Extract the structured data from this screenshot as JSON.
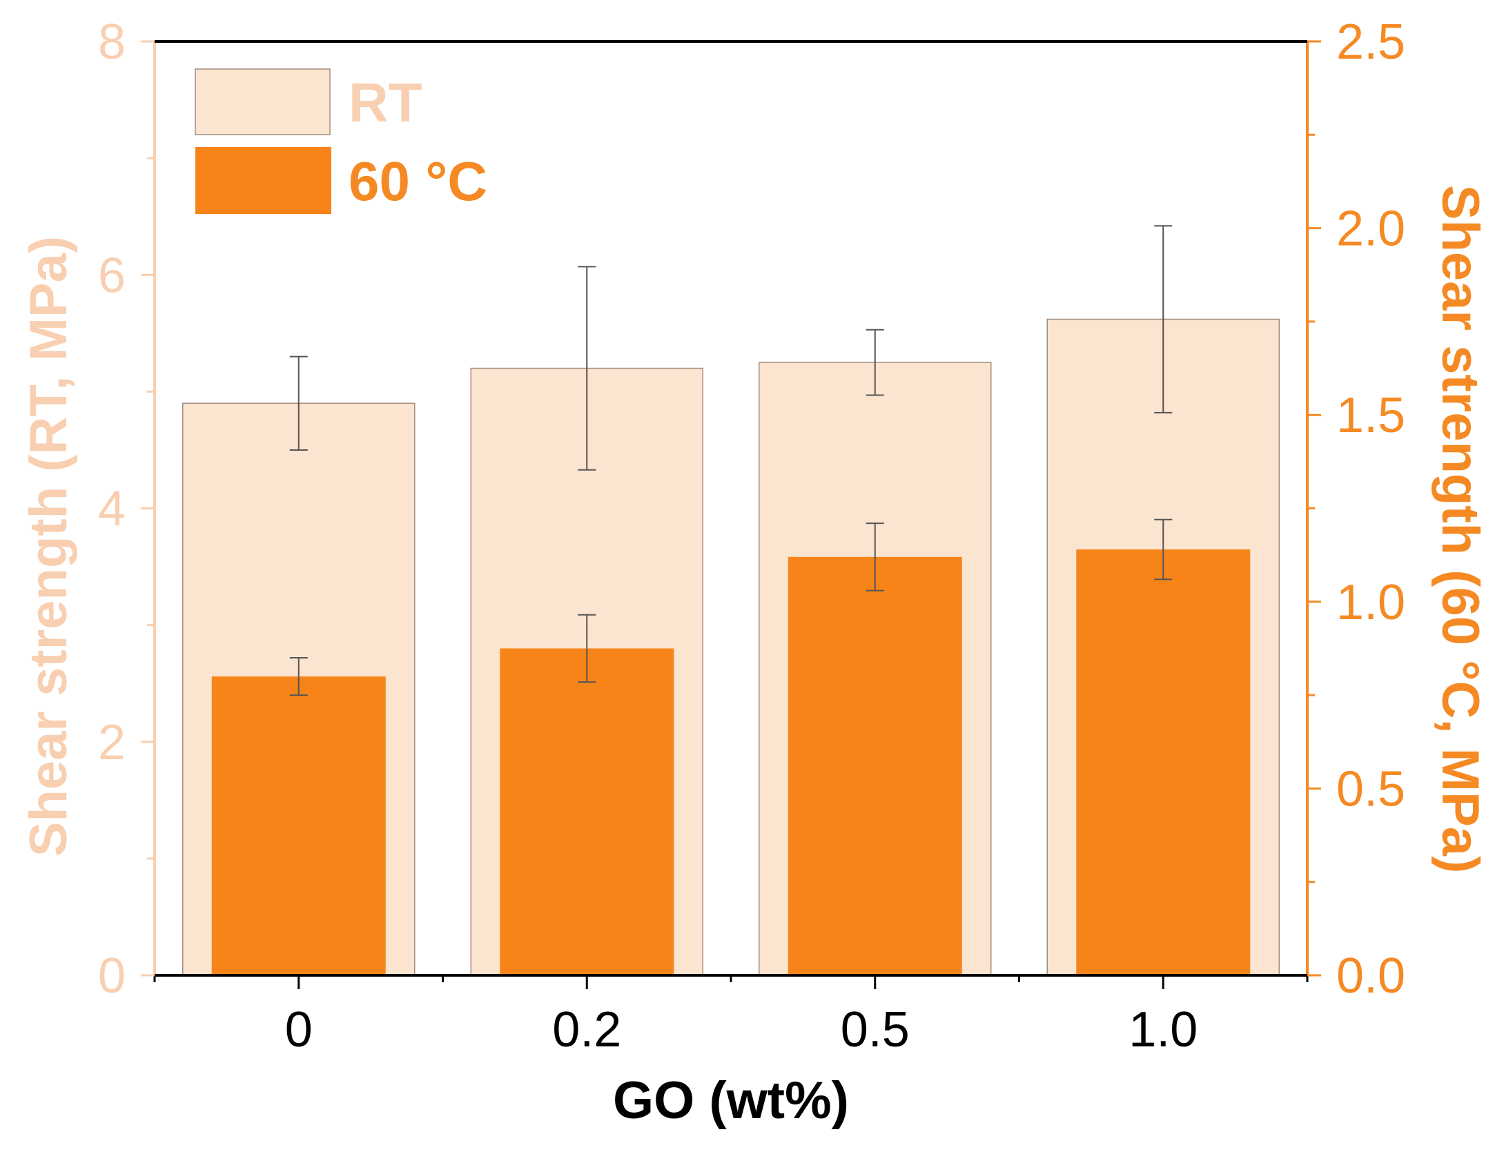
{
  "colors": {
    "rt_fill": "#fce5d0",
    "rt_stroke": "#a08c80",
    "rt_axis": "#f8cfb0",
    "hot_fill": "#f78418",
    "hot_axis": "#f58a24",
    "frame": "#000000",
    "error_bar": "#555555"
  },
  "chart_data": {
    "type": "bar",
    "categories": [
      "0",
      "0.2",
      "0.5",
      "1.0"
    ],
    "xlabel": "GO (wt%)",
    "y_left": {
      "label": "Shear strength (RT, MPa)",
      "ylim": [
        0,
        8
      ],
      "ticks": [
        "0",
        "2",
        "4",
        "6",
        "8"
      ]
    },
    "y_right": {
      "label": "Shear strength (60 °C, MPa)",
      "ylim": [
        0,
        2.5
      ],
      "ticks": [
        "0.0",
        "0.5",
        "1.0",
        "1.5",
        "2.0",
        "2.5"
      ]
    },
    "series": [
      {
        "name": "RT",
        "axis": "left",
        "values": [
          4.9,
          5.2,
          5.25,
          5.62
        ],
        "errors": [
          0.4,
          0.87,
          0.28,
          0.8
        ]
      },
      {
        "name": "60 °C",
        "axis": "right",
        "values": [
          0.8,
          0.875,
          1.12,
          1.14
        ],
        "errors": [
          0.05,
          0.09,
          0.09,
          0.08
        ]
      }
    ],
    "legend": {
      "position": "top-left",
      "rt_label": "RT",
      "hot_label": "60 °C"
    }
  }
}
